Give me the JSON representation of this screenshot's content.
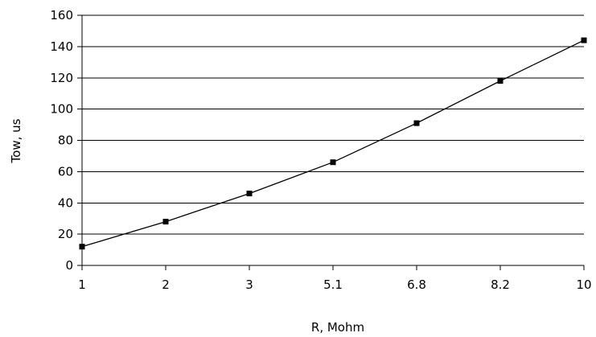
{
  "chart_data": {
    "type": "line",
    "title": "",
    "xlabel": "R, Mohm",
    "ylabel": "Tow, us",
    "x_categories": [
      "1",
      "2",
      "3",
      "5.1",
      "6.8",
      "8.2",
      "10"
    ],
    "series": [
      {
        "values": [
          12,
          28,
          46,
          66,
          91,
          118,
          144
        ],
        "color": "#000000",
        "marker": "square"
      }
    ],
    "yticks": [
      "0",
      "20",
      "40",
      "60",
      "80",
      "100",
      "120",
      "140",
      "160"
    ],
    "ylim": [
      0,
      160
    ],
    "grid": "horizontal",
    "legend": "none"
  }
}
